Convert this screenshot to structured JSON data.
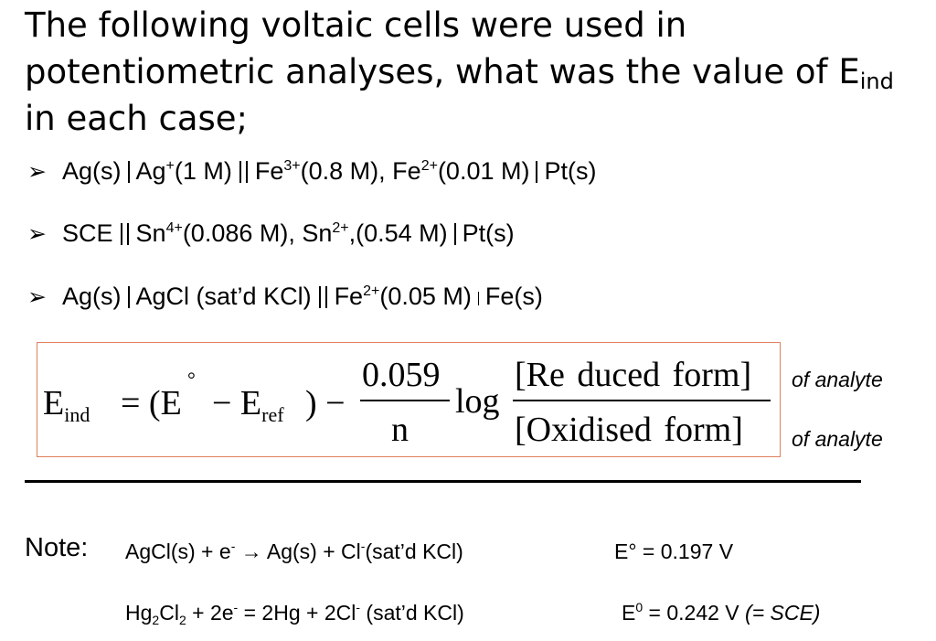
{
  "title": {
    "line1": "The following voltaic cells were used in",
    "line2_main": "potentiometric analyses, what was the value of E",
    "line2_sub": "ind",
    "line3": "in each case;"
  },
  "cells": {
    "bullet": "➢",
    "c1": {
      "a": "Ag(s)",
      "b": "Ag",
      "b_sup": "+",
      "b_conc": "(1 M)",
      "c": "Fe",
      "c_sup": "3+",
      "c_conc": "(0.8 M), Fe",
      "d_sup": "2+",
      "d_conc": "(0.01 M)",
      "e": "Pt(s)"
    },
    "c2": {
      "a": "SCE",
      "b": "Sn",
      "b_sup": "4+",
      "b_conc": "(0.086 M), Sn",
      "c_sup": "2+",
      "c_conc": ",(0.54 M)",
      "d": "Pt(s)"
    },
    "c3": {
      "a": "Ag(s)",
      "b": "AgCl (sat’d KCl)",
      "c": "Fe",
      "c_sup": "2+",
      "c_conc": "(0.05 M)",
      "d": "Fe(s)"
    }
  },
  "equation": {
    "lhs": "E",
    "lhs_sub": "ind",
    "eq_open": "= (E",
    "degree": "°",
    "minus": "− E",
    "ref_sub": "ref",
    "close_minus": ") −",
    "numerator": "0.059",
    "denominator": "n",
    "log": "log",
    "top": "[Re duced  form]",
    "bottom": "[Oxidised  form]",
    "note_top": "of analyte",
    "note_bottom": "of analyte"
  },
  "note": {
    "label": "Note:",
    "r1_a": "AgCl(s) + e",
    "r1_sup1": "-",
    "r1_b": " → Ag(s) + Cl",
    "r1_sup2": "-",
    "r1_c": "(sat’d KCl)",
    "r1_e": "E° = 0.197 V",
    "r2_a": "Hg",
    "r2_sub1": "2",
    "r2_b": "Cl",
    "r2_sub2": "2",
    "r2_c": " + 2e",
    "r2_sup1": "-",
    "r2_d": " = 2Hg + 2Cl",
    "r2_sup2": "-",
    "r2_e": " (sat’d KCl)",
    "r2_E": "E",
    "r2_E_sup": "0",
    "r2_E_val": " =  0.242 V ",
    "r2_E_paren": "(= SCE)"
  }
}
